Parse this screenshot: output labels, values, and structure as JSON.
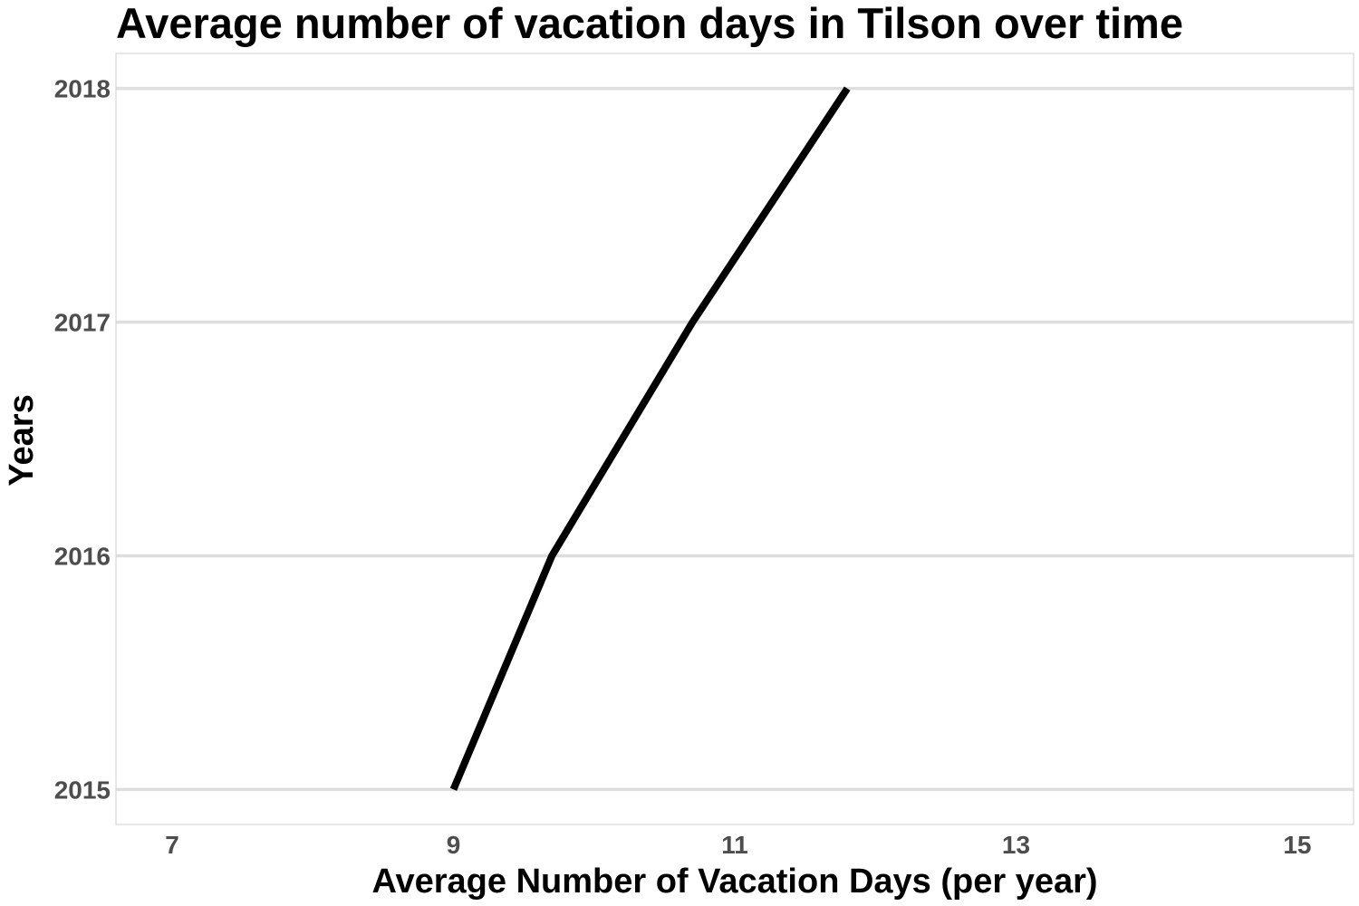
{
  "chart_data": {
    "type": "line",
    "title": "Average number of vacation days in Tilson over time",
    "xlabel": "Average Number of Vacation Days (per year)",
    "ylabel": "Years",
    "xlim": [
      6.6,
      15.4
    ],
    "ylim": [
      2014.85,
      2018.15
    ],
    "xticks": [
      7,
      9,
      11,
      13,
      15
    ],
    "yticks": [
      2015,
      2016,
      2017,
      2018
    ],
    "grid": {
      "horizontal_major": true,
      "vertical": false
    },
    "colors": {
      "line": "#000000",
      "grid": "#dedede",
      "tick_text": "#4d4d4d",
      "border": "#cfcfcf"
    },
    "series": [
      {
        "x": [
          9.0,
          9.7,
          10.7,
          11.8
        ],
        "y": [
          2015,
          2016,
          2017,
          2018
        ]
      }
    ]
  }
}
